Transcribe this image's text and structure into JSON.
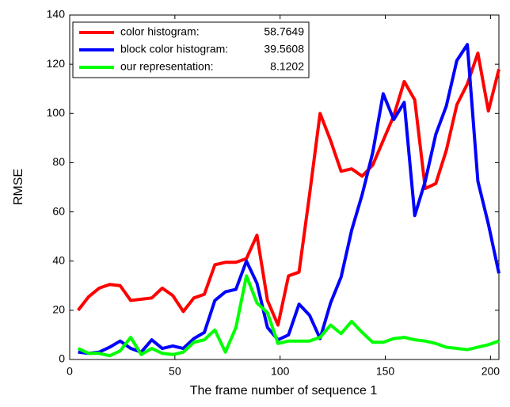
{
  "chart_data": {
    "type": "line",
    "xlabel": "The frame number of sequence 1",
    "ylabel": "RMSE",
    "x": [
      4,
      9,
      14,
      19,
      24,
      29,
      34,
      39,
      44,
      49,
      54,
      59,
      64,
      69,
      74,
      79,
      84,
      89,
      94,
      99,
      104,
      109,
      114,
      119,
      124,
      129,
      134,
      139,
      144,
      149,
      154,
      159,
      164,
      169,
      174,
      179,
      184,
      189,
      194,
      199,
      204
    ],
    "series": [
      {
        "name": "color histogram:",
        "legend_value": 58.7649,
        "color": "#ff0000",
        "values": [
          20,
          25.5,
          29,
          30.5,
          30,
          24,
          24.5,
          25,
          29,
          26,
          19.5,
          25,
          26.5,
          38.5,
          39.5,
          39.5,
          41,
          50.5,
          24,
          14,
          34,
          35.5,
          67,
          100,
          89,
          76.5,
          77.5,
          74.5,
          79,
          89,
          99,
          113,
          105.5,
          69.5,
          71.5,
          85,
          103.5,
          112,
          124.5,
          101,
          118
        ]
      },
      {
        "name": "block color histogram:",
        "legend_value": 39.5608,
        "color": "#0000ff",
        "values": [
          3,
          2.5,
          3,
          5,
          7.5,
          4.5,
          3,
          8,
          4.5,
          5.5,
          4.5,
          8.5,
          11,
          24,
          27.5,
          28.5,
          40,
          31,
          13,
          8,
          10,
          22.5,
          18,
          8.5,
          23,
          33.5,
          52.5,
          67,
          84,
          108,
          97.5,
          104.5,
          58.5,
          72.5,
          91.5,
          103,
          121.5,
          128,
          72.5,
          55,
          35
        ]
      },
      {
        "name": "our representation:",
        "legend_value": 8.1202,
        "color": "#00ff00",
        "values": [
          4.5,
          2.5,
          2.5,
          1.5,
          3.5,
          9,
          2,
          4.5,
          2.5,
          2,
          3,
          7,
          8,
          12,
          3,
          13,
          34,
          23,
          19,
          6.5,
          7.5,
          7.5,
          7.5,
          9,
          14,
          10.5,
          15.5,
          11,
          7,
          7,
          8.5,
          9,
          8,
          7.5,
          6.5,
          5,
          4.5,
          4,
          5,
          6,
          7.5
        ]
      }
    ],
    "xlim": [
      0,
      204
    ],
    "xticks": [
      0,
      50,
      100,
      150,
      200
    ],
    "ylim": [
      0,
      140
    ],
    "yticks": [
      0,
      20,
      40,
      60,
      80,
      100,
      120,
      140
    ],
    "legend": "upper left"
  }
}
